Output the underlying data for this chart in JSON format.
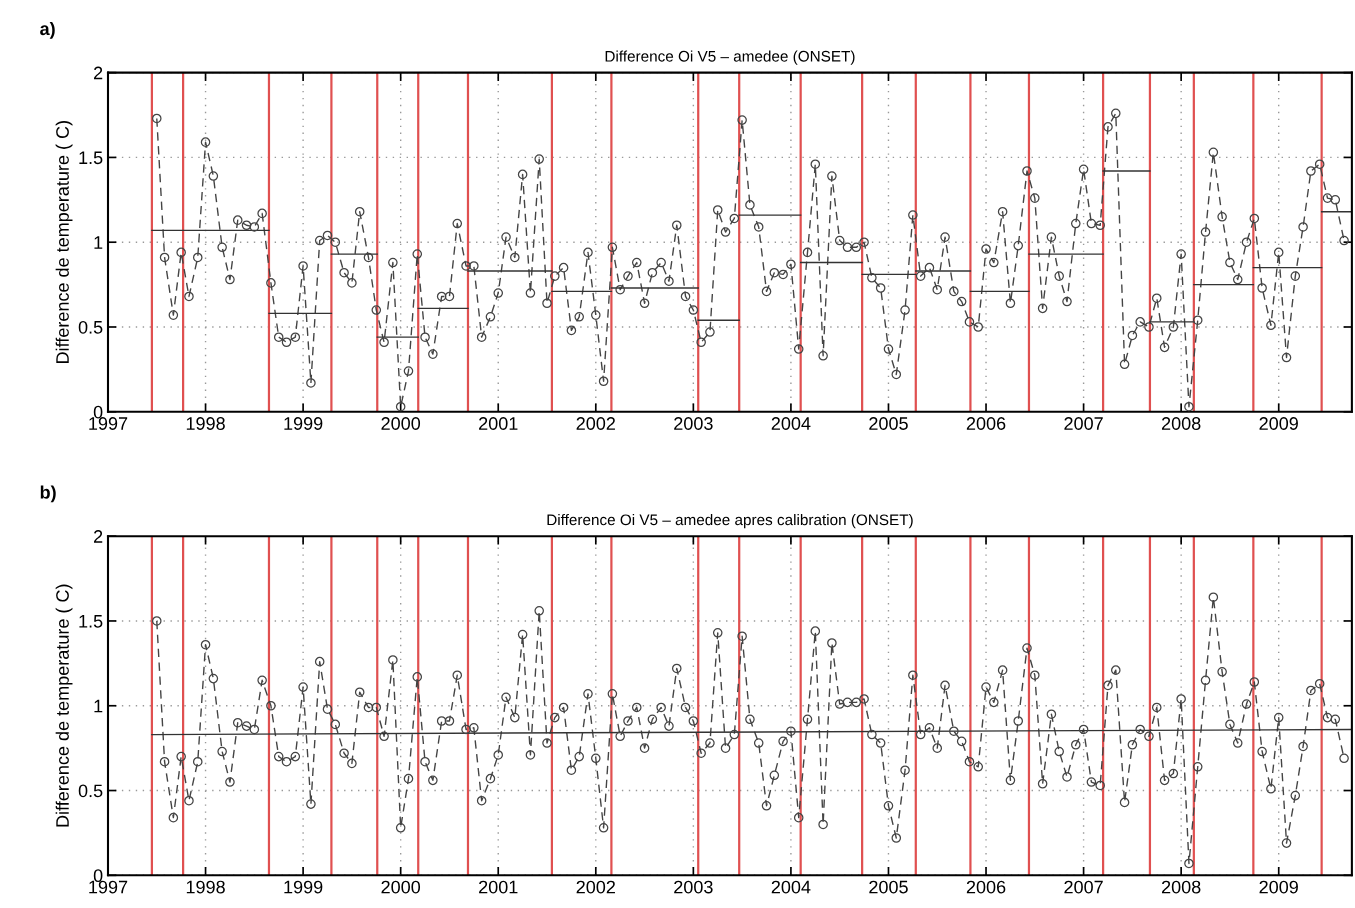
{
  "chart_data": [
    {
      "type": "line",
      "title": "Difference Oi V5 – amedee (ONSET)",
      "ylabel": "Difference de temperature ( C)",
      "annotations": [
        "a)"
      ],
      "x": [
        1997.5,
        1997.58,
        1997.67,
        1997.75,
        1997.83,
        1997.92,
        1998.0,
        1998.08,
        1998.17,
        1998.25,
        1998.33,
        1998.42,
        1998.5,
        1998.58,
        1998.67,
        1998.75,
        1998.83,
        1998.92,
        1999.0,
        1999.08,
        1999.17,
        1999.25,
        1999.33,
        1999.42,
        1999.5,
        1999.58,
        1999.67,
        1999.75,
        1999.83,
        1999.92,
        2000.0,
        2000.08,
        2000.17,
        2000.25,
        2000.33,
        2000.42,
        2000.5,
        2000.58,
        2000.67,
        2000.75,
        2000.83,
        2000.92,
        2001.0,
        2001.08,
        2001.17,
        2001.25,
        2001.33,
        2001.42,
        2001.5,
        2001.58,
        2001.67,
        2001.75,
        2001.83,
        2001.92,
        2002.0,
        2002.08,
        2002.17,
        2002.25,
        2002.33,
        2002.42,
        2002.5,
        2002.58,
        2002.67,
        2002.75,
        2002.83,
        2002.92,
        2003.0,
        2003.08,
        2003.17,
        2003.25,
        2003.33,
        2003.42,
        2003.5,
        2003.58,
        2003.67,
        2003.75,
        2003.83,
        2003.92,
        2004.0,
        2004.08,
        2004.17,
        2004.25,
        2004.33,
        2004.42,
        2004.5,
        2004.58,
        2004.67,
        2004.75,
        2004.83,
        2004.92,
        2005.0,
        2005.08,
        2005.17,
        2005.25,
        2005.33,
        2005.42,
        2005.5,
        2005.58,
        2005.67,
        2005.75,
        2005.83,
        2005.92,
        2006.0,
        2006.08,
        2006.17,
        2006.25,
        2006.33,
        2006.42,
        2006.5,
        2006.58,
        2006.67,
        2006.75,
        2006.83,
        2006.92,
        2007.0,
        2007.08,
        2007.17,
        2007.25,
        2007.33,
        2007.42,
        2007.5,
        2007.58,
        2007.67,
        2007.75,
        2007.83,
        2007.92,
        2008.0,
        2008.08,
        2008.17,
        2008.25,
        2008.33,
        2008.42,
        2008.5,
        2008.58,
        2008.67,
        2008.75,
        2008.83,
        2008.92,
        2009.0,
        2009.08,
        2009.17,
        2009.25,
        2009.33,
        2009.42,
        2009.5,
        2009.58,
        2009.67
      ],
      "series": [
        {
          "color": "#444444",
          "values": [
            1.73,
            0.91,
            0.57,
            0.94,
            0.68,
            0.91,
            1.59,
            1.39,
            0.97,
            0.78,
            1.13,
            1.1,
            1.09,
            1.17,
            0.76,
            0.44,
            0.41,
            0.44,
            0.86,
            0.17,
            1.01,
            1.04,
            1.0,
            0.82,
            0.76,
            1.18,
            0.91,
            0.6,
            0.41,
            0.88,
            0.03,
            0.24,
            0.93,
            0.44,
            0.34,
            0.68,
            0.68,
            1.11,
            0.86,
            0.86,
            0.44,
            0.56,
            0.7,
            1.03,
            0.91,
            1.4,
            0.7,
            1.49,
            0.64,
            0.8,
            0.85,
            0.48,
            0.56,
            0.94,
            0.57,
            0.18,
            0.97,
            0.72,
            0.8,
            0.88,
            0.64,
            0.82,
            0.88,
            0.77,
            1.1,
            0.68,
            0.6,
            0.41,
            0.47,
            1.19,
            1.06,
            1.14,
            1.72,
            1.22,
            1.09,
            0.71,
            0.82,
            0.81,
            0.87,
            0.37,
            0.94,
            1.46,
            0.33,
            1.39,
            1.01,
            0.97,
            0.97,
            1.0,
            0.79,
            0.73,
            0.37,
            0.22,
            0.6,
            1.16,
            0.8,
            0.85,
            0.72,
            1.03,
            0.71,
            0.65,
            0.53,
            0.5,
            0.96,
            0.88,
            1.18,
            0.64,
            0.98,
            1.42,
            1.26,
            0.61,
            1.03,
            0.8,
            0.65,
            1.11,
            1.43,
            1.11,
            1.1,
            1.68,
            1.76,
            0.28,
            0.45,
            0.53,
            0.5,
            0.67,
            0.38,
            0.5,
            0.93,
            0.03,
            0.54,
            1.06,
            1.53,
            1.15,
            0.88,
            0.78,
            1.0,
            1.14,
            0.73,
            0.51,
            0.94,
            0.32,
            0.8,
            1.09,
            1.42,
            1.46,
            1.26,
            1.25,
            1.01
          ]
        },
        {
          "color": "#333333",
          "marker": "none",
          "line_style": "solid",
          "x": [
            1997.45,
            1998.65
          ],
          "values": [
            1.07,
            1.07
          ]
        },
        {
          "color": "#333333",
          "marker": "none",
          "line_style": "solid",
          "x": [
            1998.65,
            1999.29
          ],
          "values": [
            0.58,
            0.58
          ]
        },
        {
          "color": "#333333",
          "marker": "none",
          "line_style": "solid",
          "x": [
            1999.29,
            1999.76
          ],
          "values": [
            0.93,
            0.93
          ]
        },
        {
          "color": "#333333",
          "marker": "none",
          "line_style": "solid",
          "x": [
            1999.76,
            2000.18
          ],
          "values": [
            0.44,
            0.44
          ]
        },
        {
          "color": "#333333",
          "marker": "none",
          "line_style": "solid",
          "x": [
            2000.18,
            2000.69
          ],
          "values": [
            0.61,
            0.61
          ]
        },
        {
          "color": "#333333",
          "marker": "none",
          "line_style": "solid",
          "x": [
            2000.69,
            2001.55
          ],
          "values": [
            0.83,
            0.83
          ]
        },
        {
          "color": "#333333",
          "marker": "none",
          "line_style": "solid",
          "x": [
            2001.55,
            2002.16
          ],
          "values": [
            0.71,
            0.71
          ]
        },
        {
          "color": "#333333",
          "marker": "none",
          "line_style": "solid",
          "x": [
            2002.16,
            2003.05
          ],
          "values": [
            0.73,
            0.73
          ]
        },
        {
          "color": "#333333",
          "marker": "none",
          "line_style": "solid",
          "x": [
            2003.05,
            2003.47
          ],
          "values": [
            0.54,
            0.54
          ]
        },
        {
          "color": "#333333",
          "marker": "none",
          "line_style": "solid",
          "x": [
            2003.47,
            2004.1
          ],
          "values": [
            1.16,
            1.16
          ]
        },
        {
          "color": "#333333",
          "marker": "none",
          "line_style": "solid",
          "x": [
            2004.1,
            2004.73
          ],
          "values": [
            0.88,
            0.88
          ]
        },
        {
          "color": "#333333",
          "marker": "none",
          "line_style": "solid",
          "x": [
            2004.73,
            2005.28
          ],
          "values": [
            0.81,
            0.81
          ]
        },
        {
          "color": "#333333",
          "marker": "none",
          "line_style": "solid",
          "x": [
            2005.28,
            2005.84
          ],
          "values": [
            0.83,
            0.83
          ]
        },
        {
          "color": "#333333",
          "marker": "none",
          "line_style": "solid",
          "x": [
            2005.84,
            2006.44
          ],
          "values": [
            0.71,
            0.71
          ]
        },
        {
          "color": "#333333",
          "marker": "none",
          "line_style": "solid",
          "x": [
            2006.44,
            2007.2
          ],
          "values": [
            0.93,
            0.93
          ]
        },
        {
          "color": "#333333",
          "marker": "none",
          "line_style": "solid",
          "x": [
            2007.2,
            2007.68
          ],
          "values": [
            1.42,
            1.42
          ]
        },
        {
          "color": "#333333",
          "marker": "none",
          "line_style": "solid",
          "x": [
            2007.68,
            2008.13
          ],
          "values": [
            0.53,
            0.53
          ]
        },
        {
          "color": "#333333",
          "marker": "none",
          "line_style": "solid",
          "x": [
            2008.13,
            2008.74
          ],
          "values": [
            0.75,
            0.75
          ]
        },
        {
          "color": "#333333",
          "marker": "none",
          "line_style": "solid",
          "x": [
            2008.74,
            2009.44
          ],
          "values": [
            0.85,
            0.85
          ]
        },
        {
          "color": "#333333",
          "marker": "none",
          "line_style": "solid",
          "x": [
            2009.44,
            2009.75
          ],
          "values": [
            1.18,
            1.18
          ]
        }
      ],
      "ref_lines": [
        {
          "axis": "x",
          "value": 1997.45,
          "color": "#e05050"
        },
        {
          "axis": "x",
          "value": 1997.77,
          "color": "#e05050"
        },
        {
          "axis": "x",
          "value": 1998.65,
          "color": "#e05050"
        },
        {
          "axis": "x",
          "value": 1999.29,
          "color": "#e05050"
        },
        {
          "axis": "x",
          "value": 1999.76,
          "color": "#e05050"
        },
        {
          "axis": "x",
          "value": 2000.18,
          "color": "#e05050"
        },
        {
          "axis": "x",
          "value": 2000.69,
          "color": "#e05050"
        },
        {
          "axis": "x",
          "value": 2001.55,
          "color": "#e05050"
        },
        {
          "axis": "x",
          "value": 2002.16,
          "color": "#e05050"
        },
        {
          "axis": "x",
          "value": 2003.05,
          "color": "#e05050"
        },
        {
          "axis": "x",
          "value": 2003.47,
          "color": "#e05050"
        },
        {
          "axis": "x",
          "value": 2004.1,
          "color": "#e05050"
        },
        {
          "axis": "x",
          "value": 2004.73,
          "color": "#e05050"
        },
        {
          "axis": "x",
          "value": 2005.28,
          "color": "#e05050"
        },
        {
          "axis": "x",
          "value": 2005.84,
          "color": "#e05050"
        },
        {
          "axis": "x",
          "value": 2006.44,
          "color": "#e05050"
        },
        {
          "axis": "x",
          "value": 2007.2,
          "color": "#e05050"
        },
        {
          "axis": "x",
          "value": 2007.68,
          "color": "#e05050"
        },
        {
          "axis": "x",
          "value": 2008.13,
          "color": "#e05050"
        },
        {
          "axis": "x",
          "value": 2008.74,
          "color": "#e05050"
        },
        {
          "axis": "x",
          "value": 2009.44,
          "color": "#e05050"
        }
      ],
      "xlim": [
        1997,
        2009.75
      ],
      "xticks": [
        1997,
        1998,
        1999,
        2000,
        2001,
        2002,
        2003,
        2004,
        2005,
        2006,
        2007,
        2008,
        2009
      ],
      "ylim": [
        0,
        2
      ],
      "yticks": [
        0,
        0.5,
        1,
        1.5,
        2
      ],
      "grid": true,
      "marker": "circle",
      "line_style": "dashed"
    },
    {
      "type": "line",
      "title": "Difference Oi V5 – amedee apres calibration (ONSET)",
      "ylabel": "Difference de temperature ( C)",
      "annotations": [
        "b)"
      ],
      "x": [
        1997.5,
        1997.58,
        1997.67,
        1997.75,
        1997.83,
        1997.92,
        1998.0,
        1998.08,
        1998.17,
        1998.25,
        1998.33,
        1998.42,
        1998.5,
        1998.58,
        1998.67,
        1998.75,
        1998.83,
        1998.92,
        1999.0,
        1999.08,
        1999.17,
        1999.25,
        1999.33,
        1999.42,
        1999.5,
        1999.58,
        1999.67,
        1999.75,
        1999.83,
        1999.92,
        2000.0,
        2000.08,
        2000.17,
        2000.25,
        2000.33,
        2000.42,
        2000.5,
        2000.58,
        2000.67,
        2000.75,
        2000.83,
        2000.92,
        2001.0,
        2001.08,
        2001.17,
        2001.25,
        2001.33,
        2001.42,
        2001.5,
        2001.58,
        2001.67,
        2001.75,
        2001.83,
        2001.92,
        2002.0,
        2002.08,
        2002.17,
        2002.25,
        2002.33,
        2002.42,
        2002.5,
        2002.58,
        2002.67,
        2002.75,
        2002.83,
        2002.92,
        2003.0,
        2003.08,
        2003.17,
        2003.25,
        2003.33,
        2003.42,
        2003.5,
        2003.58,
        2003.67,
        2003.75,
        2003.83,
        2003.92,
        2004.0,
        2004.08,
        2004.17,
        2004.25,
        2004.33,
        2004.42,
        2004.5,
        2004.58,
        2004.67,
        2004.75,
        2004.83,
        2004.92,
        2005.0,
        2005.08,
        2005.17,
        2005.25,
        2005.33,
        2005.42,
        2005.5,
        2005.58,
        2005.67,
        2005.75,
        2005.83,
        2005.92,
        2006.0,
        2006.08,
        2006.17,
        2006.25,
        2006.33,
        2006.42,
        2006.5,
        2006.58,
        2006.67,
        2006.75,
        2006.83,
        2006.92,
        2007.0,
        2007.08,
        2007.17,
        2007.25,
        2007.33,
        2007.42,
        2007.5,
        2007.58,
        2007.67,
        2007.75,
        2007.83,
        2007.92,
        2008.0,
        2008.08,
        2008.17,
        2008.25,
        2008.33,
        2008.42,
        2008.5,
        2008.58,
        2008.67,
        2008.75,
        2008.83,
        2008.92,
        2009.0,
        2009.08,
        2009.17,
        2009.25,
        2009.33,
        2009.42,
        2009.5,
        2009.58,
        2009.67
      ],
      "series": [
        {
          "color": "#444444",
          "values": [
            1.5,
            0.67,
            0.34,
            0.7,
            0.44,
            0.67,
            1.36,
            1.16,
            0.73,
            0.55,
            0.9,
            0.88,
            0.86,
            1.15,
            1.0,
            0.7,
            0.67,
            0.7,
            1.11,
            0.42,
            1.26,
            0.98,
            0.89,
            0.72,
            0.66,
            1.08,
            0.99,
            0.99,
            0.82,
            1.27,
            0.28,
            0.57,
            1.17,
            0.67,
            0.56,
            0.91,
            0.91,
            1.18,
            0.86,
            0.87,
            0.44,
            0.57,
            0.71,
            1.05,
            0.93,
            1.42,
            0.71,
            1.56,
            0.78,
            0.93,
            0.99,
            0.62,
            0.7,
            1.07,
            0.69,
            0.28,
            1.07,
            0.82,
            0.91,
            0.99,
            0.75,
            0.92,
            0.99,
            0.88,
            1.22,
            0.99,
            0.91,
            0.72,
            0.78,
            1.43,
            0.75,
            0.83,
            1.41,
            0.92,
            0.78,
            0.41,
            0.59,
            0.79,
            0.85,
            0.34,
            0.92,
            1.44,
            0.3,
            1.37,
            1.01,
            1.02,
            1.02,
            1.04,
            0.83,
            0.78,
            0.41,
            0.22,
            0.62,
            1.18,
            0.83,
            0.87,
            0.75,
            1.12,
            0.85,
            0.79,
            0.67,
            0.64,
            1.11,
            1.02,
            1.21,
            0.56,
            0.91,
            1.34,
            1.18,
            0.54,
            0.95,
            0.73,
            0.58,
            0.77,
            0.86,
            0.55,
            0.53,
            1.12,
            1.21,
            0.43,
            0.77,
            0.86,
            0.82,
            0.99,
            0.56,
            0.6,
            1.04,
            0.07,
            0.64,
            1.15,
            1.64,
            1.2,
            0.89,
            0.78,
            1.01,
            1.14,
            0.73,
            0.51,
            0.93,
            0.19,
            0.47,
            0.76,
            1.09,
            1.13,
            0.93,
            0.92,
            0.69
          ]
        },
        {
          "color": "#333333",
          "marker": "none",
          "line_style": "solid",
          "x": [
            1997.45,
            2009.75
          ],
          "values": [
            0.83,
            0.86
          ]
        }
      ],
      "ref_lines": [
        {
          "axis": "x",
          "value": 1997.45,
          "color": "#e05050"
        },
        {
          "axis": "x",
          "value": 1997.77,
          "color": "#e05050"
        },
        {
          "axis": "x",
          "value": 1998.65,
          "color": "#e05050"
        },
        {
          "axis": "x",
          "value": 1999.29,
          "color": "#e05050"
        },
        {
          "axis": "x",
          "value": 1999.76,
          "color": "#e05050"
        },
        {
          "axis": "x",
          "value": 2000.18,
          "color": "#e05050"
        },
        {
          "axis": "x",
          "value": 2000.69,
          "color": "#e05050"
        },
        {
          "axis": "x",
          "value": 2001.55,
          "color": "#e05050"
        },
        {
          "axis": "x",
          "value": 2002.16,
          "color": "#e05050"
        },
        {
          "axis": "x",
          "value": 2003.05,
          "color": "#e05050"
        },
        {
          "axis": "x",
          "value": 2003.47,
          "color": "#e05050"
        },
        {
          "axis": "x",
          "value": 2004.1,
          "color": "#e05050"
        },
        {
          "axis": "x",
          "value": 2004.73,
          "color": "#e05050"
        },
        {
          "axis": "x",
          "value": 2005.28,
          "color": "#e05050"
        },
        {
          "axis": "x",
          "value": 2005.84,
          "color": "#e05050"
        },
        {
          "axis": "x",
          "value": 2006.44,
          "color": "#e05050"
        },
        {
          "axis": "x",
          "value": 2007.2,
          "color": "#e05050"
        },
        {
          "axis": "x",
          "value": 2007.68,
          "color": "#e05050"
        },
        {
          "axis": "x",
          "value": 2008.13,
          "color": "#e05050"
        },
        {
          "axis": "x",
          "value": 2008.74,
          "color": "#e05050"
        },
        {
          "axis": "x",
          "value": 2009.44,
          "color": "#e05050"
        }
      ],
      "xlim": [
        1997,
        2009.75
      ],
      "xticks": [
        1997,
        1998,
        1999,
        2000,
        2001,
        2002,
        2003,
        2004,
        2005,
        2006,
        2007,
        2008,
        2009
      ],
      "ylim": [
        0,
        2
      ],
      "yticks": [
        0,
        0.5,
        1,
        1.5,
        2
      ],
      "grid": true,
      "marker": "circle",
      "line_style": "dashed"
    }
  ]
}
